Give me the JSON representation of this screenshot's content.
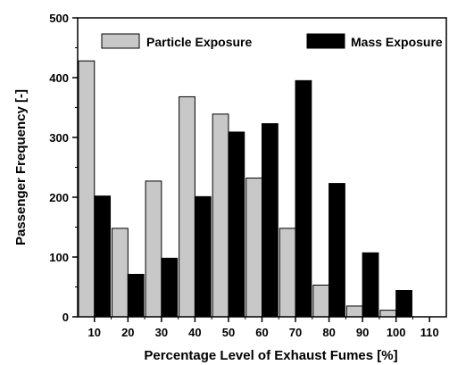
{
  "chart_data": {
    "type": "bar",
    "categories": [
      "10",
      "20",
      "30",
      "40",
      "50",
      "60",
      "70",
      "80",
      "90",
      "100"
    ],
    "x_ticks": [
      "10",
      "20",
      "30",
      "40",
      "50",
      "60",
      "70",
      "80",
      "90",
      "100",
      "110"
    ],
    "y_ticks": [
      "0",
      "100",
      "200",
      "300",
      "400",
      "500"
    ],
    "series": [
      {
        "name": "Particle Exposure",
        "color": "#c8c8c8",
        "values": [
          428,
          148,
          227,
          368,
          339,
          232,
          148,
          53,
          18,
          11
        ]
      },
      {
        "name": "Mass Exposure",
        "color": "#000000",
        "values": [
          202,
          71,
          98,
          201,
          309,
          323,
          395,
          223,
          107,
          44
        ]
      }
    ],
    "xlabel": "Percentage Level of Exhaust Fumes [%]",
    "ylabel": "Passenger Frequency [-]",
    "ylim": [
      0,
      500
    ],
    "xlim": [
      5,
      115
    ],
    "grid": false,
    "legend_position": "top"
  }
}
